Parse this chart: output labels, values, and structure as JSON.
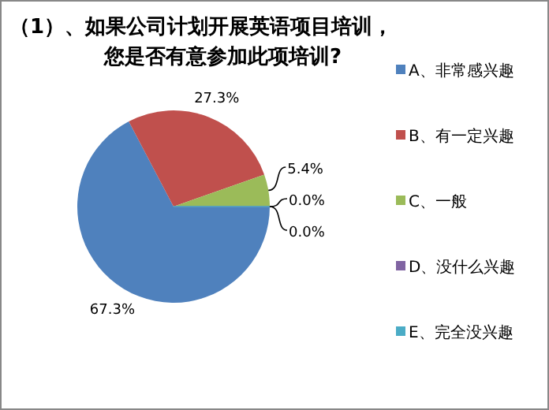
{
  "chart_data": {
    "type": "pie",
    "title": "（1）、如果公司计划开展英语项目培训，您是否有意参加此项培训?",
    "categories": [
      "A、非常感兴趣",
      "B、有一定兴趣",
      "C、一般",
      "D、没什么兴趣",
      "E、完全没兴趣"
    ],
    "values": [
      67.3,
      27.3,
      5.4,
      0.0,
      0.0
    ],
    "colors": [
      "#4f81bd",
      "#c0504d",
      "#9bbb59",
      "#8064a2",
      "#4bacc6"
    ],
    "value_labels": [
      "67.3%",
      "27.3%",
      "5.4%",
      "0.0%",
      "0.0%"
    ],
    "legend": "right"
  }
}
